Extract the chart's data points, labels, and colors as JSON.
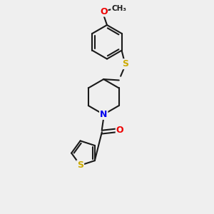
{
  "background_color": "#efefef",
  "bond_color": "#1a1a1a",
  "bond_width": 1.5,
  "atom_colors": {
    "S": "#ccaa00",
    "N": "#0000ee",
    "O": "#ee0000",
    "C": "#1a1a1a"
  },
  "font_size_atom": 8.5,
  "xlim": [
    -1.0,
    2.2
  ],
  "ylim": [
    -3.2,
    3.0
  ]
}
